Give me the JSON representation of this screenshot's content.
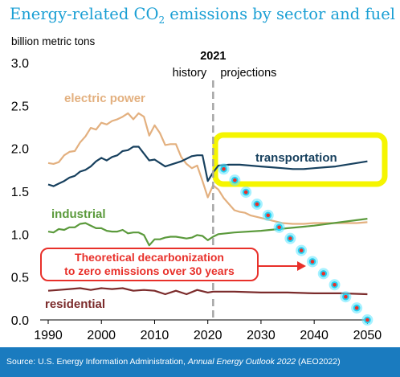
{
  "title": {
    "prefix": "Energy-related CO",
    "sub": "2",
    "suffix": " emissions by sector and fuel"
  },
  "footer": {
    "prefix": "Source: U.S. Energy Information Administration, ",
    "italic": "Annual Energy Outlook 2022",
    "suffix": " (AEO2022)"
  },
  "chart_data": {
    "type": "line",
    "title": "Energy-related CO2 emissions by sector and fuel",
    "ylabel": "billion metric tons",
    "xlabel": "",
    "xlim": [
      1990,
      2051
    ],
    "ylim": [
      0,
      3.0
    ],
    "x_ticks": [
      1990,
      2000,
      2010,
      2020,
      2030,
      2040,
      2050
    ],
    "y_ticks": [
      0.0,
      0.5,
      1.0,
      1.5,
      2.0,
      2.5,
      3.0
    ],
    "grid": false,
    "divider": {
      "year": 2021,
      "label": "2021",
      "left_label": "history",
      "right_label": "projections"
    },
    "series": [
      {
        "name": "electric power",
        "color": "#e3b07f",
        "x": [
          1990,
          1991,
          1992,
          1993,
          1994,
          1995,
          1996,
          1997,
          1998,
          1999,
          2000,
          2001,
          2002,
          2003,
          2004,
          2005,
          2006,
          2007,
          2008,
          2009,
          2010,
          2011,
          2012,
          2013,
          2014,
          2015,
          2016,
          2017,
          2018,
          2019,
          2020,
          2021,
          2022,
          2023,
          2024,
          2025,
          2026,
          2027,
          2028,
          2030,
          2032,
          2034,
          2036,
          2038,
          2040,
          2042,
          2044,
          2046,
          2048,
          2050
        ],
        "y": [
          1.83,
          1.82,
          1.84,
          1.92,
          1.96,
          1.97,
          2.07,
          2.14,
          2.24,
          2.22,
          2.3,
          2.28,
          2.32,
          2.34,
          2.37,
          2.41,
          2.34,
          2.41,
          2.37,
          2.15,
          2.27,
          2.18,
          2.04,
          2.05,
          2.05,
          1.9,
          1.82,
          1.77,
          1.8,
          1.62,
          1.43,
          1.57,
          1.52,
          1.42,
          1.35,
          1.28,
          1.26,
          1.25,
          1.22,
          1.19,
          1.16,
          1.13,
          1.12,
          1.12,
          1.13,
          1.13,
          1.13,
          1.13,
          1.13,
          1.14
        ]
      },
      {
        "name": "transportation",
        "color": "#17405e",
        "x": [
          1990,
          1991,
          1992,
          1993,
          1994,
          1995,
          1996,
          1997,
          1998,
          1999,
          2000,
          2001,
          2002,
          2003,
          2004,
          2005,
          2006,
          2007,
          2008,
          2009,
          2010,
          2011,
          2012,
          2013,
          2014,
          2015,
          2016,
          2017,
          2018,
          2019,
          2020,
          2021,
          2022,
          2024,
          2026,
          2028,
          2030,
          2032,
          2034,
          2036,
          2038,
          2040,
          2042,
          2044,
          2046,
          2048,
          2050
        ],
        "y": [
          1.58,
          1.56,
          1.59,
          1.62,
          1.66,
          1.68,
          1.73,
          1.75,
          1.79,
          1.85,
          1.89,
          1.86,
          1.9,
          1.92,
          1.97,
          1.98,
          2.02,
          2.02,
          1.94,
          1.86,
          1.87,
          1.83,
          1.79,
          1.81,
          1.83,
          1.85,
          1.88,
          1.91,
          1.92,
          1.92,
          1.62,
          1.72,
          1.8,
          1.81,
          1.81,
          1.8,
          1.79,
          1.78,
          1.77,
          1.76,
          1.76,
          1.77,
          1.78,
          1.79,
          1.81,
          1.83,
          1.85
        ]
      },
      {
        "name": "industrial",
        "color": "#5b9a3c",
        "x": [
          1990,
          1991,
          1992,
          1993,
          1994,
          1995,
          1996,
          1997,
          1998,
          1999,
          2000,
          2001,
          2002,
          2003,
          2004,
          2005,
          2006,
          2007,
          2008,
          2009,
          2010,
          2011,
          2012,
          2013,
          2014,
          2015,
          2016,
          2017,
          2018,
          2019,
          2020,
          2021,
          2022,
          2025,
          2030,
          2035,
          2040,
          2045,
          2050
        ],
        "y": [
          1.03,
          1.02,
          1.06,
          1.05,
          1.08,
          1.08,
          1.12,
          1.13,
          1.1,
          1.07,
          1.07,
          1.04,
          1.03,
          1.03,
          1.05,
          1.01,
          1.02,
          1.02,
          0.99,
          0.87,
          0.94,
          0.94,
          0.96,
          0.97,
          0.97,
          0.96,
          0.95,
          0.96,
          0.99,
          0.98,
          0.93,
          0.97,
          1.0,
          1.02,
          1.04,
          1.07,
          1.1,
          1.14,
          1.18
        ]
      },
      {
        "name": "residential",
        "color": "#7b2b2b",
        "x": [
          1990,
          1992,
          1994,
          1996,
          1998,
          2000,
          2002,
          2004,
          2006,
          2008,
          2010,
          2012,
          2014,
          2016,
          2018,
          2020,
          2021,
          2025,
          2030,
          2035,
          2040,
          2045,
          2050
        ],
        "y": [
          0.34,
          0.35,
          0.36,
          0.37,
          0.35,
          0.37,
          0.36,
          0.37,
          0.34,
          0.35,
          0.34,
          0.3,
          0.34,
          0.3,
          0.35,
          0.32,
          0.33,
          0.33,
          0.32,
          0.32,
          0.31,
          0.31,
          0.3
        ]
      },
      {
        "name": "Theoretical decarbonization",
        "color": "#e8302a",
        "style": "dotted",
        "x": [
          2023,
          2025.08,
          2027.17,
          2029.25,
          2031.33,
          2033.42,
          2035.5,
          2037.58,
          2039.67,
          2041.75,
          2043.83,
          2045.92,
          2048,
          2050
        ],
        "y": [
          1.76,
          1.63,
          1.49,
          1.35,
          1.22,
          1.08,
          0.95,
          0.81,
          0.68,
          0.54,
          0.41,
          0.27,
          0.14,
          0.0
        ]
      }
    ],
    "annotations": {
      "decarb_line1": "Theoretical decarbonization",
      "decarb_line2": "to zero emissions over 30 years",
      "transportation_label": "transportation",
      "electric_label": "electric power",
      "industrial_label": "industrial",
      "residential_label": "residential"
    },
    "highlight": {
      "color": "#f5f500"
    }
  }
}
